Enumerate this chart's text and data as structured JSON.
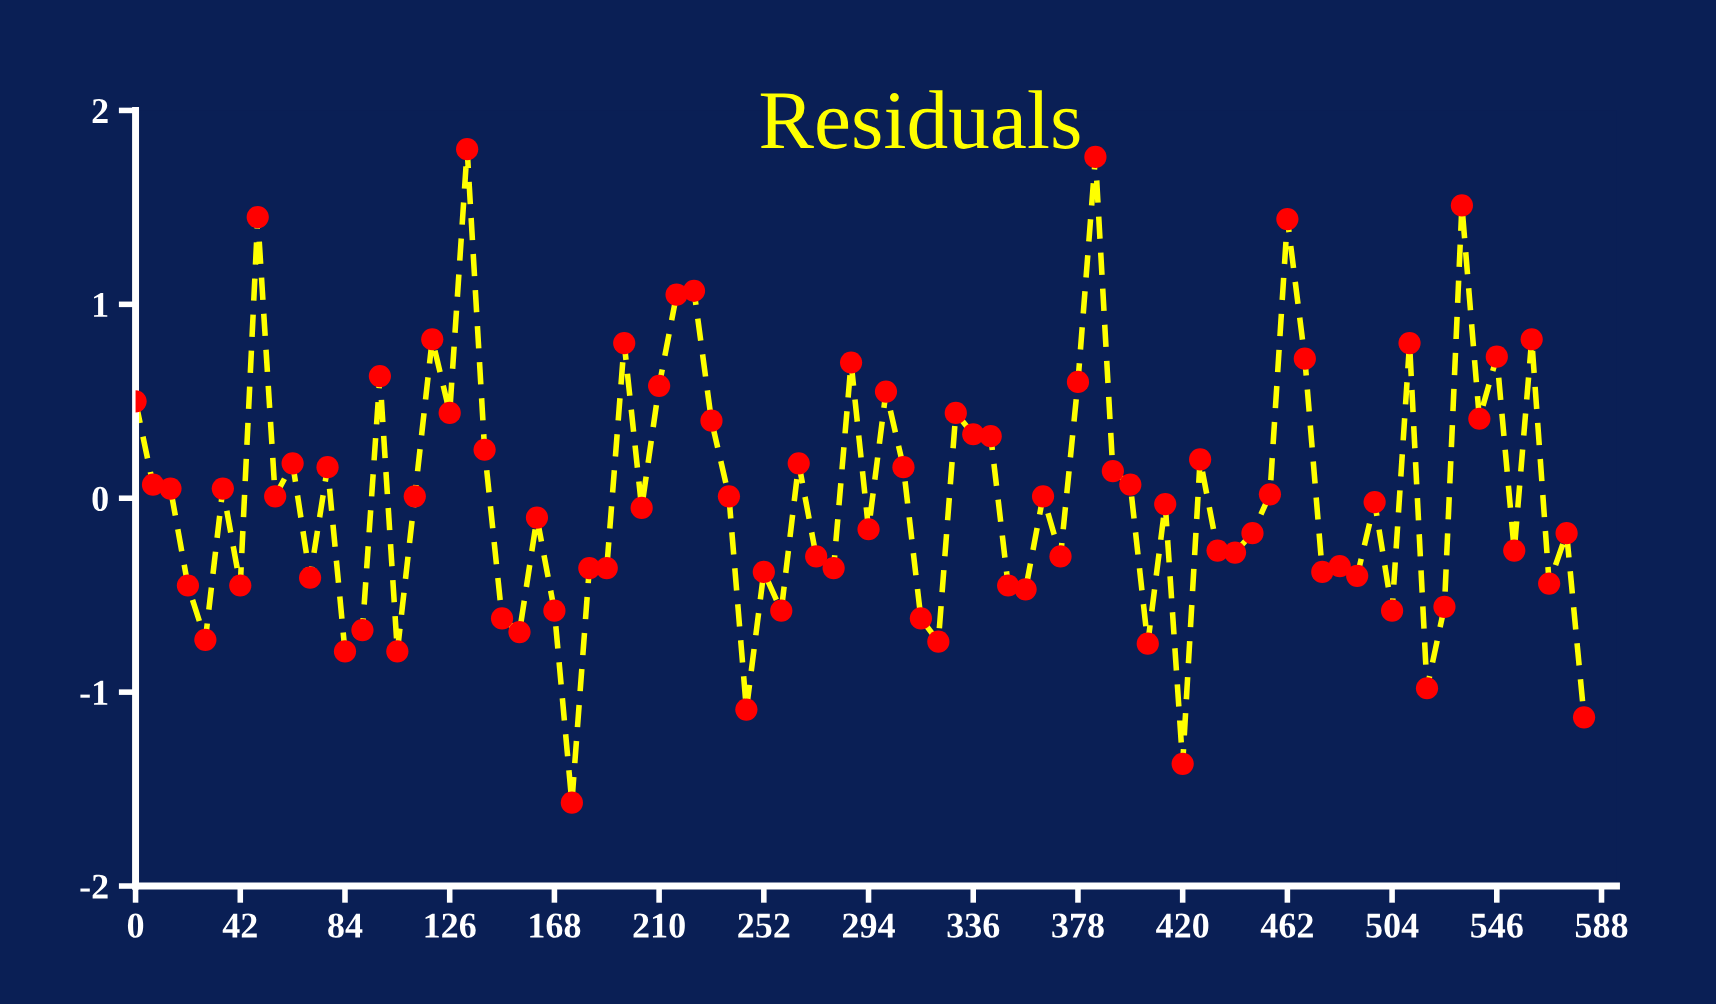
{
  "chart_data": {
    "type": "line",
    "title": "Residuals",
    "x": [
      0,
      7,
      14,
      21,
      28,
      35,
      42,
      49,
      56,
      63,
      70,
      77,
      84,
      91,
      98,
      105,
      112,
      119,
      126,
      133,
      140,
      147,
      154,
      161,
      168,
      175,
      182,
      189,
      196,
      203,
      210,
      217,
      224,
      231,
      238,
      245,
      252,
      259,
      266,
      273,
      280,
      287,
      294,
      301,
      308,
      315,
      322,
      329,
      336,
      343,
      350,
      357,
      364,
      371,
      378,
      385,
      392,
      399,
      406,
      413,
      420,
      427,
      434,
      441,
      448,
      455,
      462,
      469,
      476,
      483,
      490,
      497,
      504,
      511,
      518,
      525,
      532,
      539,
      546,
      553,
      560,
      567,
      574,
      581
    ],
    "series": [
      {
        "color": "#ffff00",
        "colors": [
          "#ff0000",
          "#ff0000",
          "#ff0000",
          "#ff0000",
          "#ff0000",
          "#ff0000",
          "#ff0000",
          "#ff0000",
          "#ff0000",
          "#ff0000",
          "#ff0000",
          "#ff0000",
          "#ff0000",
          "#ff0000",
          "#ff0000",
          "#ff0000",
          "#ff0000",
          "#ff0000",
          "#ff0000",
          "#ff0000",
          "#ff0000",
          "#ff0000",
          "#ff0000",
          "#ff0000",
          "#ff0000",
          "#ff0000",
          "#ff0000",
          "#ff0000",
          "#ff0000",
          "#ff0000",
          "#ff0000",
          "#ff0000",
          "#ff0000",
          "#ff0000",
          "#ff0000",
          "#ff0000",
          "#ff0000",
          "#ff0000",
          "#ff0000",
          "#ff0000",
          "#ff0000",
          "#ff0000",
          "#ff0000",
          "#ff0000",
          "#ff0000",
          "#ff0000",
          "#ff0000",
          "#ff0000",
          "#ff0000",
          "#ff0000",
          "#ff0000",
          "#ff0000",
          "#ff0000",
          "#ff0000",
          "#ff0000",
          "#ff0000",
          "#ff0000",
          "#ff0000",
          "#ff0000",
          "#ff0000",
          "#ff0000",
          "#ff0000",
          "#ff0000",
          "#ff0000",
          "#ff0000",
          "#ff0000",
          "#ff0000",
          "#ff0000",
          "#ff0000",
          "#ff0000",
          "#ff0000",
          "#ff0000",
          "#ff0000",
          "#ff0000",
          "#ff0000",
          "#ff0000",
          "#ff0000",
          "#ff0000",
          "#ff0000",
          "#ff0000",
          "#ff0000",
          "#ff0000",
          "#ff0000",
          "#ff0000"
        ],
        "values": [
          0.5,
          0.07,
          0.05,
          -0.45,
          -0.73,
          0.05,
          -0.45,
          1.45,
          0.01,
          0.18,
          -0.41,
          0.16,
          -0.79,
          -0.68,
          0.63,
          -0.79,
          0.01,
          0.82,
          0.44,
          1.8,
          0.25,
          -0.62,
          -0.69,
          -0.1,
          -0.58,
          -1.57,
          -0.36,
          -0.36,
          0.8,
          -0.05,
          0.58,
          1.05,
          1.07,
          0.4,
          0.01,
          -1.09,
          -0.38,
          -0.58,
          0.18,
          -0.3,
          -0.36,
          0.7,
          -0.16,
          0.55,
          0.16,
          -0.62,
          -0.74,
          0.44,
          0.33,
          0.32,
          -0.45,
          -0.47,
          0.01,
          -0.3,
          0.6,
          1.76,
          0.14,
          0.07,
          -0.75,
          -0.03,
          -1.37,
          0.2,
          -0.27,
          -0.28,
          -0.18,
          0.02,
          1.44,
          0.72,
          -0.38,
          -0.35,
          -0.4,
          -0.02,
          -0.58,
          0.8,
          -0.98,
          -0.56,
          1.51,
          0.41,
          0.73,
          -0.27,
          0.82,
          -0.44,
          -0.18,
          -1.13
        ]
      }
    ],
    "xlim": [
      0,
      594
    ],
    "ylim": [
      -2,
      2
    ],
    "xticks": [
      0,
      42,
      84,
      126,
      168,
      210,
      252,
      294,
      336,
      378,
      420,
      462,
      504,
      546,
      588
    ],
    "yticks": [
      -2,
      -1,
      0,
      1,
      2
    ],
    "marker": "circle",
    "line_style": "dashed",
    "grid": false,
    "legend": false
  }
}
